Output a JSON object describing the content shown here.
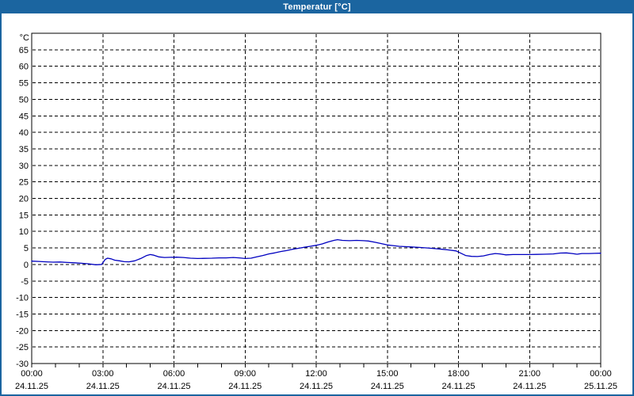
{
  "window": {
    "title": "Temperatur [°C]"
  },
  "colors": {
    "titlebar_bg": "#1B65A0",
    "titlebar_text": "#FFFFFF",
    "window_border": "#1B65A0",
    "page_bg": "#FFFFFF",
    "plot_bg": "#FFFFFF",
    "grid": "#000000",
    "axis": "#000000",
    "label_text": "#000000",
    "series_line": "#0000C0"
  },
  "chart_data": {
    "type": "line",
    "title": "Temperatur [°C]",
    "ylabel": "°C",
    "xlabel": "",
    "ylim": [
      -30,
      70
    ],
    "ytick_step": 5,
    "yticks": [
      65,
      60,
      55,
      50,
      45,
      40,
      35,
      30,
      25,
      20,
      15,
      10,
      5,
      0,
      -5,
      -10,
      -15,
      -20,
      -25,
      -30
    ],
    "xlim_hours": [
      0,
      24
    ],
    "minor_xtick_hours": 1,
    "grid": "dashed",
    "legend": "none",
    "xticks": [
      {
        "hour": 0,
        "time": "00:00",
        "date": "24.11.25"
      },
      {
        "hour": 3,
        "time": "03:00",
        "date": "24.11.25"
      },
      {
        "hour": 6,
        "time": "06:00",
        "date": "24.11.25"
      },
      {
        "hour": 9,
        "time": "09:00",
        "date": "24.11.25"
      },
      {
        "hour": 12,
        "time": "12:00",
        "date": "24.11.25"
      },
      {
        "hour": 15,
        "time": "15:00",
        "date": "24.11.25"
      },
      {
        "hour": 18,
        "time": "18:00",
        "date": "24.11.25"
      },
      {
        "hour": 21,
        "time": "21:00",
        "date": "24.11.25"
      },
      {
        "hour": 24,
        "time": "00:00",
        "date": "25.11.25"
      }
    ],
    "series": [
      {
        "name": "Temperatur",
        "color": "#0000C0",
        "points_hour_degC": [
          [
            0,
            1.0
          ],
          [
            0.3,
            0.9
          ],
          [
            0.6,
            0.8
          ],
          [
            0.9,
            0.7
          ],
          [
            1.2,
            0.75
          ],
          [
            1.5,
            0.6
          ],
          [
            1.8,
            0.5
          ],
          [
            2.1,
            0.35
          ],
          [
            2.4,
            0.2
          ],
          [
            2.7,
            -0.1
          ],
          [
            2.95,
            0.0
          ],
          [
            3.1,
            1.5
          ],
          [
            3.2,
            1.9
          ],
          [
            3.35,
            1.7
          ],
          [
            3.5,
            1.3
          ],
          [
            3.7,
            1.1
          ],
          [
            3.9,
            0.85
          ],
          [
            4.1,
            0.8
          ],
          [
            4.35,
            1.1
          ],
          [
            4.6,
            1.8
          ],
          [
            4.85,
            2.7
          ],
          [
            5.0,
            3.0
          ],
          [
            5.15,
            2.8
          ],
          [
            5.35,
            2.3
          ],
          [
            5.6,
            2.1
          ],
          [
            5.85,
            2.15
          ],
          [
            6.1,
            2.2
          ],
          [
            6.4,
            2.1
          ],
          [
            6.7,
            1.9
          ],
          [
            7.0,
            1.8
          ],
          [
            7.3,
            1.85
          ],
          [
            7.6,
            1.9
          ],
          [
            7.9,
            2.0
          ],
          [
            8.2,
            2.0
          ],
          [
            8.5,
            2.1
          ],
          [
            8.75,
            2.0
          ],
          [
            9.0,
            1.8
          ],
          [
            9.25,
            1.9
          ],
          [
            9.5,
            2.3
          ],
          [
            9.75,
            2.7
          ],
          [
            10.0,
            3.2
          ],
          [
            10.25,
            3.5
          ],
          [
            10.5,
            3.9
          ],
          [
            10.75,
            4.2
          ],
          [
            11.0,
            4.6
          ],
          [
            11.25,
            4.9
          ],
          [
            11.5,
            5.2
          ],
          [
            11.75,
            5.5
          ],
          [
            12.0,
            5.8
          ],
          [
            12.25,
            6.2
          ],
          [
            12.5,
            6.8
          ],
          [
            12.75,
            7.3
          ],
          [
            12.9,
            7.5
          ],
          [
            13.1,
            7.3
          ],
          [
            13.4,
            7.2
          ],
          [
            13.7,
            7.3
          ],
          [
            14.0,
            7.2
          ],
          [
            14.2,
            7.1
          ],
          [
            14.5,
            6.7
          ],
          [
            14.75,
            6.3
          ],
          [
            15.0,
            5.9
          ],
          [
            15.25,
            5.7
          ],
          [
            15.5,
            5.5
          ],
          [
            15.75,
            5.4
          ],
          [
            16.0,
            5.3
          ],
          [
            16.35,
            5.15
          ],
          [
            16.7,
            5.0
          ],
          [
            17.0,
            4.8
          ],
          [
            17.3,
            4.6
          ],
          [
            17.6,
            4.4
          ],
          [
            17.9,
            4.1
          ],
          [
            18.1,
            3.4
          ],
          [
            18.3,
            2.7
          ],
          [
            18.55,
            2.45
          ],
          [
            18.8,
            2.4
          ],
          [
            19.05,
            2.6
          ],
          [
            19.3,
            3.0
          ],
          [
            19.55,
            3.3
          ],
          [
            19.75,
            3.2
          ],
          [
            20.0,
            2.9
          ],
          [
            20.3,
            3.0
          ],
          [
            20.6,
            3.0
          ],
          [
            21.0,
            3.0
          ],
          [
            21.3,
            3.05
          ],
          [
            21.6,
            3.1
          ],
          [
            22.0,
            3.2
          ],
          [
            22.3,
            3.45
          ],
          [
            22.55,
            3.5
          ],
          [
            22.8,
            3.3
          ],
          [
            23.0,
            3.1
          ],
          [
            23.2,
            3.3
          ],
          [
            23.5,
            3.3
          ],
          [
            23.75,
            3.35
          ],
          [
            24.0,
            3.4
          ]
        ]
      }
    ]
  }
}
